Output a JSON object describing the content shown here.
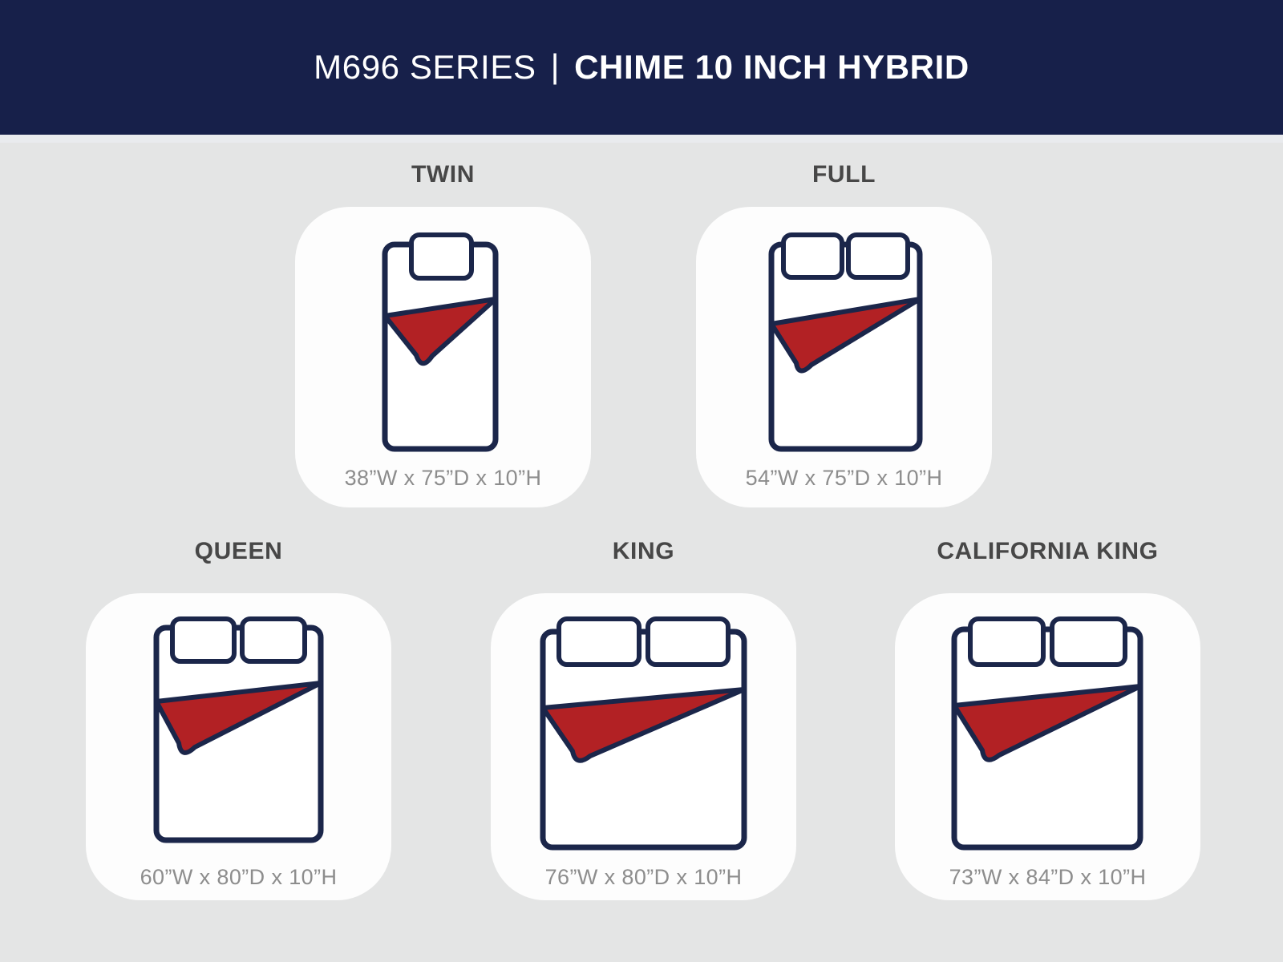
{
  "header": {
    "series": "M696 SERIES",
    "separator": "|",
    "product": "CHIME 10 INCH HYBRID"
  },
  "cards": [
    {
      "id": "twin",
      "label": "TWIN",
      "dims": "38”W x 75”D x 10”H",
      "pillows": 1
    },
    {
      "id": "full",
      "label": "FULL",
      "dims": "54”W x 75”D x 10”H",
      "pillows": 2
    },
    {
      "id": "queen",
      "label": "QUEEN",
      "dims": "60”W x 80”D x 10”H",
      "pillows": 2
    },
    {
      "id": "king",
      "label": "KING",
      "dims": "76”W x 80”D x 10”H",
      "pillows": 2
    },
    {
      "id": "california-king",
      "label": "CALIFORNIA KING",
      "dims": "73”W x 84”D x 10”H",
      "pillows": 2
    }
  ],
  "colors": {
    "header_bg": "#17204a",
    "header_text": "#ffffff",
    "band": "#e9ebee",
    "page_bg": "#e4e5e5",
    "card_bg": "#fdfdfd",
    "navy": "#1b264a",
    "red": "#b22124",
    "label_text": "#474747",
    "dims_text": "#8d8d8d"
  }
}
